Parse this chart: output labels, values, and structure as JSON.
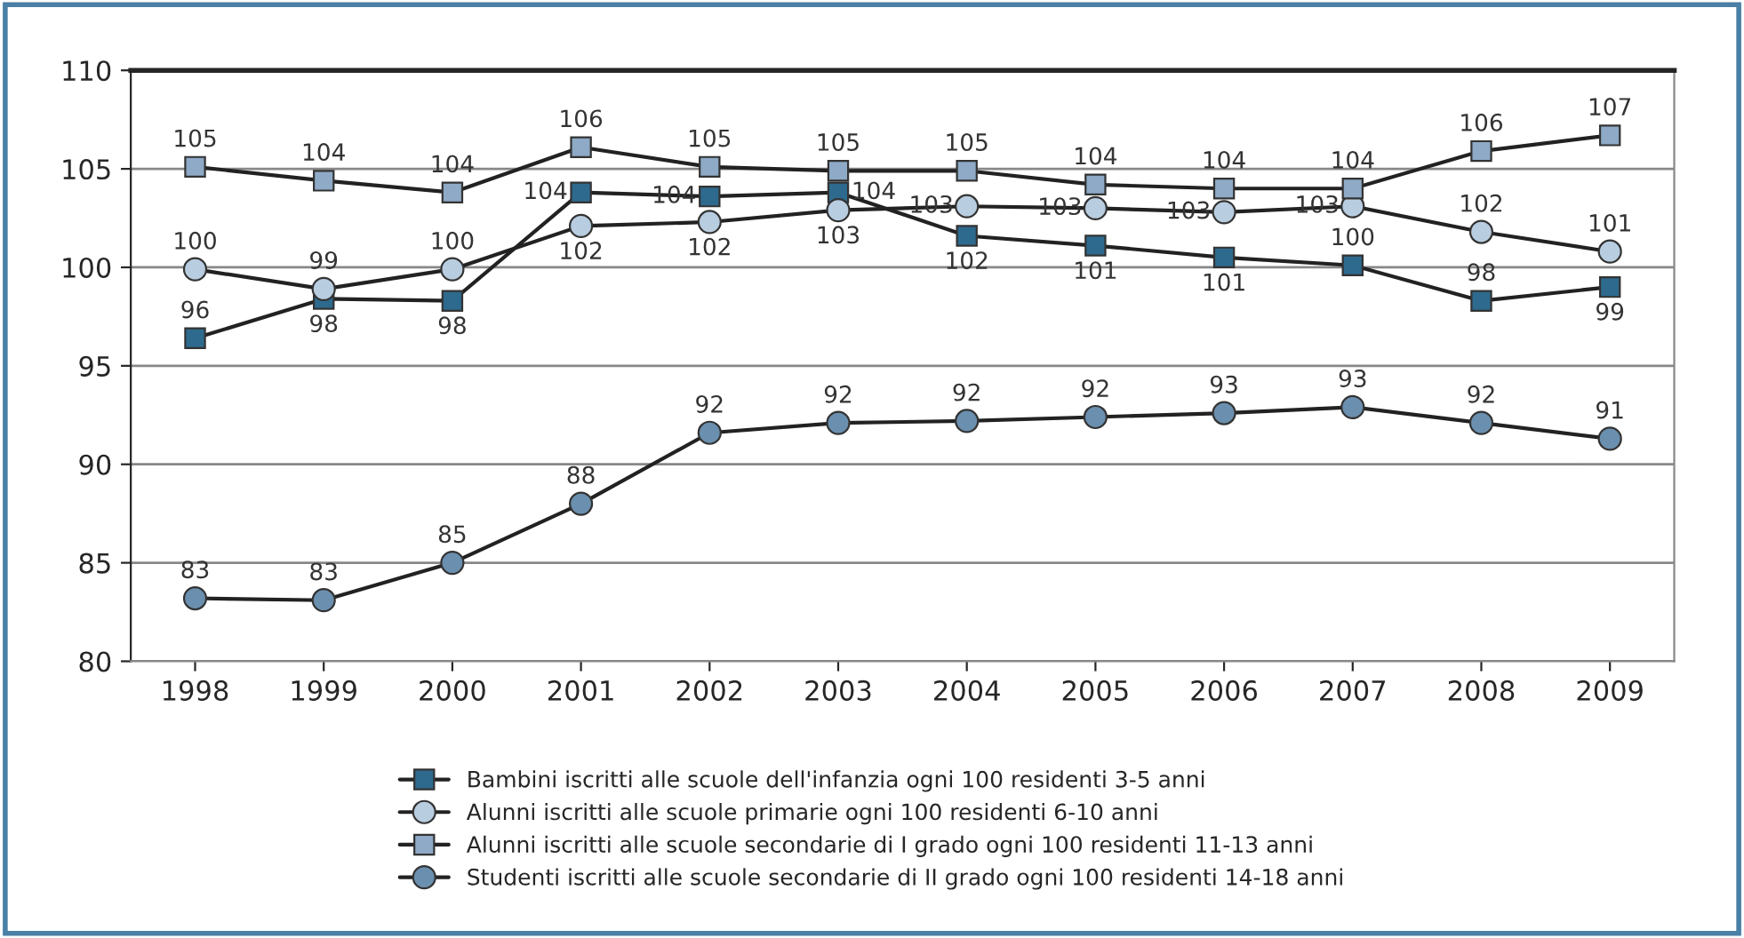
{
  "chart_data": {
    "type": "line",
    "categories": [
      "1998",
      "1999",
      "2000",
      "2001",
      "2002",
      "2003",
      "2004",
      "2005",
      "2006",
      "2007",
      "2008",
      "2009"
    ],
    "series": [
      {
        "name": "Bambini iscritti alle scuole dell'infanzia ogni 100 residenti 3-5 anni",
        "color": "#2e6a8e",
        "marker": "square",
        "values": [
          96.4,
          98.4,
          98.3,
          103.8,
          103.6,
          103.8,
          101.6,
          101.1,
          100.5,
          100.1,
          98.3,
          99.0
        ],
        "value_labels": [
          "96",
          "98",
          "98",
          "104",
          "104",
          "104",
          "102",
          "101",
          "101",
          "100",
          "98",
          "99"
        ]
      },
      {
        "name": "Alunni iscritti alle scuole primarie ogni 100 residenti 6-10 anni",
        "color": "#b9cde0",
        "marker": "circle",
        "values": [
          99.9,
          98.9,
          99.9,
          102.1,
          102.3,
          102.9,
          103.1,
          103.0,
          102.8,
          103.1,
          101.8,
          100.8
        ],
        "value_labels": [
          "100",
          "99",
          "100",
          "102",
          "102",
          "103",
          "103",
          "103",
          "103",
          "103",
          "102",
          "101"
        ]
      },
      {
        "name": "Alunni iscritti alle scuole secondarie di I grado ogni 100 residenti 11-13 anni",
        "color": "#8eaac6",
        "marker": "square",
        "values": [
          105.1,
          104.4,
          103.8,
          106.1,
          105.1,
          104.9,
          104.9,
          104.2,
          104.0,
          104.0,
          105.9,
          106.7
        ],
        "value_labels": [
          "105",
          "104",
          "104",
          "106",
          "105",
          "105",
          "105",
          "104",
          "104",
          "104",
          "106",
          "107"
        ]
      },
      {
        "name": "Studenti iscritti alle scuole secondarie di II grado ogni 100 residenti 14-18 anni",
        "color": "#6b8fae",
        "marker": "circle",
        "values": [
          83.2,
          83.1,
          85.0,
          88.0,
          91.6,
          92.1,
          92.2,
          92.4,
          92.6,
          92.9,
          92.1,
          91.3
        ],
        "value_labels": [
          "83",
          "83",
          "85",
          "88",
          "92",
          "92",
          "92",
          "92",
          "93",
          "93",
          "92",
          "91"
        ]
      }
    ],
    "ylim": [
      80,
      110
    ],
    "yticks": [
      80,
      85,
      90,
      95,
      100,
      105,
      110
    ],
    "grid": "y",
    "legend": "bottom",
    "line_style": "solid"
  }
}
